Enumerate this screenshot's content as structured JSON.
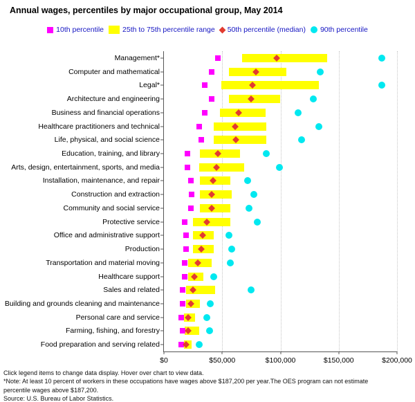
{
  "title": "Annual wages, percentiles by major occupational group, May 2014",
  "colors": {
    "p10_magenta": "#ff00ff",
    "range_yellow": "#ffff00",
    "median_red": "#e23b30",
    "p90_cyan": "#00e8f0",
    "legend_text": "#1515c2",
    "axis_line": "#555555",
    "gridline": "#c4c4c4"
  },
  "chart_data": {
    "type": "bar",
    "subtype": "horizontal-percentile-range-dot-plot",
    "title": "Annual wages, percentiles by major occupational group, May 2014",
    "xlabel": "",
    "ylabel": "",
    "xlim": [
      0,
      200000
    ],
    "x_tick_values": [
      0,
      50000,
      100000,
      150000,
      200000
    ],
    "x_tick_labels": [
      "$0",
      "$50,000",
      "$100,000",
      "$150,000",
      "$200,000"
    ],
    "grid": "vertical dotted gridlines every $50,000",
    "legend_position": "top",
    "legend_items": [
      {
        "id": "p10",
        "label": "10th percentile",
        "shape": "square",
        "color": "#ff00ff"
      },
      {
        "id": "p25_75",
        "label": "25th to 75th percentile range",
        "shape": "bar",
        "color": "#ffff00"
      },
      {
        "id": "p50",
        "label": "50th percentile (median)",
        "shape": "diamond",
        "color": "#e23b30"
      },
      {
        "id": "p90",
        "label": "90th percentile",
        "shape": "circle",
        "color": "#00e8f0"
      }
    ],
    "categories": [
      "Management*",
      "Computer and mathematical",
      "Legal*",
      "Architecture and engineering",
      "Business and financial operations",
      "Healthcare practitioners and technical",
      "Life, physical, and social science",
      "Education, training, and library",
      "Arts, design, entertainment, sports, and media",
      "Installation, maintenance, and repair",
      "Construction and extraction",
      "Community and social service",
      "Protective service",
      "Office and administrative support",
      "Production",
      "Transportation and material moving",
      "Healthcare support",
      "Sales and related",
      "Building and grounds cleaning and maintenance",
      "Personal care and service",
      "Farming, fishing, and forestry",
      "Food preparation and serving related"
    ],
    "percentiles": {
      "p10": [
        46000,
        41000,
        35000,
        41000,
        35000,
        30000,
        32000,
        20000,
        20000,
        23000,
        24000,
        23000,
        18000,
        19000,
        19000,
        18000,
        18000,
        16000,
        16000,
        15000,
        16000,
        15000
      ],
      "p25": [
        67000,
        56000,
        49000,
        56000,
        48000,
        43000,
        43000,
        31000,
        30000,
        31000,
        31000,
        31000,
        25000,
        25000,
        25000,
        21000,
        21000,
        19000,
        19000,
        17000,
        18000,
        17000
      ],
      "p50": [
        97000,
        79000,
        76000,
        75000,
        64000,
        61000,
        62000,
        46000,
        45000,
        42000,
        41000,
        41000,
        37000,
        33000,
        32000,
        29000,
        26000,
        25000,
        23000,
        21000,
        21000,
        19000
      ],
      "p75": [
        140000,
        105000,
        133000,
        100000,
        87000,
        88000,
        88000,
        65000,
        69000,
        57000,
        58000,
        57000,
        57000,
        43000,
        43000,
        41000,
        34000,
        44000,
        31000,
        27000,
        30000,
        24000
      ],
      "p90": [
        187200,
        134000,
        187200,
        128000,
        115000,
        133000,
        118000,
        88000,
        99000,
        72000,
        77000,
        73000,
        80000,
        56000,
        58000,
        57000,
        43000,
        75000,
        40000,
        37000,
        39000,
        30000
      ]
    },
    "wage_cap_value": 187200,
    "capped_categories": [
      "Management*",
      "Legal*"
    ]
  },
  "footer": {
    "lines": [
      "Click legend items to change data display. Hover over chart to view data.",
      "*Note: At least 10 percent of workers in these occupations have wages above $187,200 per year.The OES program can not estimate",
      "percentile wages above $187,200.",
      "Source: U.S. Bureau of Labor Statistics."
    ]
  }
}
